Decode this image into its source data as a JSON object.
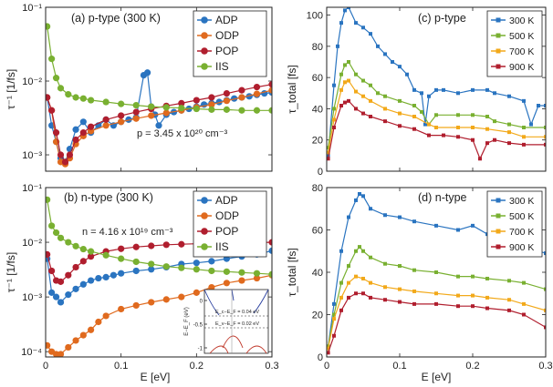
{
  "figure": {
    "xlabel": "E [eV]"
  },
  "chart_data": [
    {
      "type": "scatter",
      "scale_y": "log",
      "title": "(a) p-type (300 K)",
      "xlabel": "",
      "ylabel": "τ⁻¹ [1/fs]",
      "xlim": [
        0,
        0.3
      ],
      "ylim": [
        0.0006,
        0.1
      ],
      "x_ticks": [
        0,
        0.1,
        0.2,
        0.3
      ],
      "x_tick_labels": [
        "",
        "",
        "",
        ""
      ],
      "y_ticks": [
        0.001,
        0.01,
        0.1
      ],
      "y_tick_labels": [
        "10⁻³",
        "10⁻²",
        "10⁻¹"
      ],
      "annotation": "p = 3.45 x 10²⁰ cm⁻³",
      "legend": "top-right",
      "series": [
        {
          "name": "ADP",
          "color": "#2a74c0",
          "x": [
            0.002,
            0.008,
            0.014,
            0.02,
            0.026,
            0.032,
            0.04,
            0.05,
            0.06,
            0.07,
            0.08,
            0.09,
            0.1,
            0.11,
            0.12,
            0.13,
            0.135,
            0.14,
            0.145,
            0.15,
            0.16,
            0.17,
            0.18,
            0.19,
            0.2,
            0.21,
            0.22,
            0.23,
            0.24,
            0.25,
            0.26,
            0.27,
            0.28,
            0.29,
            0.3
          ],
          "y": [
            0.006,
            0.0025,
            0.0015,
            0.0009,
            0.0008,
            0.0012,
            0.0022,
            0.0028,
            0.002,
            0.0025,
            0.003,
            0.0025,
            0.0028,
            0.003,
            0.0032,
            0.012,
            0.013,
            0.0045,
            0.0035,
            0.0025,
            0.0035,
            0.0038,
            0.004,
            0.0042,
            0.0045,
            0.0048,
            0.005,
            0.0052,
            0.0055,
            0.0058,
            0.006,
            0.0062,
            0.0065,
            0.0068,
            0.007
          ]
        },
        {
          "name": "ODP",
          "color": "#e06a1e",
          "x": [
            0.002,
            0.008,
            0.014,
            0.02,
            0.026,
            0.032,
            0.04,
            0.05,
            0.06,
            0.08,
            0.1,
            0.12,
            0.14,
            0.16,
            0.18,
            0.2,
            0.22,
            0.24,
            0.26,
            0.28,
            0.3
          ],
          "y": [
            0.006,
            0.004,
            0.0015,
            0.0008,
            0.00075,
            0.0009,
            0.0014,
            0.0018,
            0.0021,
            0.0025,
            0.0028,
            0.0031,
            0.0034,
            0.0037,
            0.004,
            0.0044,
            0.0048,
            0.0054,
            0.006,
            0.0067,
            0.0075
          ]
        },
        {
          "name": "POP",
          "color": "#b01e2e",
          "x": [
            0.002,
            0.008,
            0.014,
            0.02,
            0.026,
            0.032,
            0.04,
            0.05,
            0.06,
            0.08,
            0.1,
            0.12,
            0.14,
            0.16,
            0.18,
            0.2,
            0.22,
            0.24,
            0.26,
            0.28,
            0.3
          ],
          "y": [
            0.006,
            0.004,
            0.002,
            0.001,
            0.0008,
            0.001,
            0.0016,
            0.002,
            0.0024,
            0.003,
            0.0034,
            0.0038,
            0.0042,
            0.0046,
            0.005,
            0.0055,
            0.006,
            0.0068,
            0.0075,
            0.0083,
            0.009
          ]
        },
        {
          "name": "IIS",
          "color": "#79b031",
          "x": [
            0.002,
            0.008,
            0.014,
            0.02,
            0.03,
            0.04,
            0.05,
            0.06,
            0.08,
            0.1,
            0.12,
            0.14,
            0.16,
            0.18,
            0.2,
            0.22,
            0.24,
            0.26,
            0.28,
            0.3
          ],
          "y": [
            0.055,
            0.02,
            0.011,
            0.008,
            0.0066,
            0.006,
            0.0058,
            0.0055,
            0.0052,
            0.0049,
            0.0047,
            0.0045,
            0.0044,
            0.0043,
            0.0042,
            0.0041,
            0.0041,
            0.004,
            0.004,
            0.004
          ]
        }
      ]
    },
    {
      "type": "scatter",
      "scale_y": "log",
      "title": "(b) n-type (300 K)",
      "xlabel": "E [eV]",
      "ylabel": "τ⁻¹ [1/fs]",
      "xlim": [
        0,
        0.3
      ],
      "ylim": [
        8e-05,
        0.1
      ],
      "x_ticks": [
        0,
        0.1,
        0.2,
        0.3
      ],
      "x_tick_labels": [
        "0",
        "0.1",
        "0.2",
        "0.3"
      ],
      "y_ticks": [
        0.0001,
        0.001,
        0.01,
        0.1
      ],
      "y_tick_labels": [
        "10⁻⁴",
        "10⁻³",
        "10⁻²",
        "10⁻¹"
      ],
      "annotation": "n = 4.16 x 10¹⁹ cm⁻³",
      "legend": "top-right",
      "inset": {
        "ylabel": "E−E_F (eV)",
        "y_tick_labels": [
          "0",
          "-0.5",
          "-1"
        ],
        "labels": [
          "E_c−E_F = 0.04 eV",
          "E_v−E_F = 0.02 eV"
        ]
      },
      "series": [
        {
          "name": "ADP",
          "color": "#2a74c0",
          "x": [
            0.002,
            0.008,
            0.014,
            0.02,
            0.03,
            0.04,
            0.05,
            0.06,
            0.07,
            0.08,
            0.09,
            0.1,
            0.12,
            0.14,
            0.16,
            0.18,
            0.2,
            0.22,
            0.24,
            0.26,
            0.28,
            0.3
          ],
          "y": [
            0.005,
            0.0012,
            0.001,
            0.0008,
            0.0011,
            0.0014,
            0.0017,
            0.002,
            0.0022,
            0.0023,
            0.0025,
            0.0027,
            0.003,
            0.0032,
            0.0035,
            0.004,
            0.0042,
            0.0045,
            0.005,
            0.0055,
            0.006,
            0.007
          ]
        },
        {
          "name": "ODP",
          "color": "#e06a1e",
          "x": [
            0.002,
            0.008,
            0.014,
            0.02,
            0.03,
            0.04,
            0.05,
            0.06,
            0.07,
            0.08,
            0.1,
            0.12,
            0.14,
            0.16,
            0.18,
            0.2,
            0.22,
            0.24,
            0.26,
            0.28,
            0.3
          ],
          "y": [
            0.00013,
            0.0001,
            9e-05,
            9e-05,
            0.00012,
            0.00016,
            0.0002,
            0.00025,
            0.00035,
            0.00045,
            0.0006,
            0.0007,
            0.0008,
            0.0009,
            0.001,
            0.0012,
            0.0015,
            0.0018,
            0.002,
            0.0022,
            0.0025
          ]
        },
        {
          "name": "POP",
          "color": "#b01e2e",
          "x": [
            0.002,
            0.008,
            0.014,
            0.02,
            0.03,
            0.04,
            0.05,
            0.06,
            0.08,
            0.1,
            0.12,
            0.14,
            0.16,
            0.18,
            0.2,
            0.22,
            0.24,
            0.26,
            0.28,
            0.3
          ],
          "y": [
            0.006,
            0.003,
            0.002,
            0.0019,
            0.0025,
            0.0035,
            0.0045,
            0.0055,
            0.0068,
            0.0076,
            0.0082,
            0.0086,
            0.009,
            0.0092,
            0.0094,
            0.0096,
            0.0097,
            0.0098,
            0.0099,
            0.01
          ]
        },
        {
          "name": "IIS",
          "color": "#79b031",
          "x": [
            0.002,
            0.008,
            0.014,
            0.02,
            0.03,
            0.04,
            0.05,
            0.06,
            0.08,
            0.1,
            0.12,
            0.14,
            0.16,
            0.18,
            0.2,
            0.22,
            0.24,
            0.26,
            0.28,
            0.3
          ],
          "y": [
            0.06,
            0.02,
            0.015,
            0.012,
            0.01,
            0.0085,
            0.0075,
            0.0068,
            0.0058,
            0.005,
            0.0044,
            0.004,
            0.0036,
            0.0034,
            0.0032,
            0.003,
            0.0029,
            0.0028,
            0.0027,
            0.0026
          ]
        }
      ]
    },
    {
      "type": "line",
      "title": "(c) p-type",
      "xlabel": "",
      "ylabel": "τ_total [fs]",
      "xlim": [
        0,
        0.3
      ],
      "ylim": [
        0,
        105
      ],
      "x_ticks": [
        0,
        0.1,
        0.2,
        0.3
      ],
      "x_tick_labels": [
        "",
        "",
        "",
        ""
      ],
      "y_ticks": [
        0,
        20,
        40,
        60,
        80,
        100
      ],
      "y_tick_labels": [
        "0",
        "20",
        "40",
        "60",
        "80",
        "100"
      ],
      "legend": "top-right",
      "series": [
        {
          "name": "300 K",
          "color": "#2a74c0",
          "x": [
            0.002,
            0.01,
            0.015,
            0.02,
            0.025,
            0.03,
            0.04,
            0.05,
            0.06,
            0.07,
            0.08,
            0.09,
            0.1,
            0.11,
            0.12,
            0.13,
            0.135,
            0.14,
            0.15,
            0.16,
            0.18,
            0.2,
            0.22,
            0.23,
            0.25,
            0.27,
            0.28,
            0.29,
            0.3
          ],
          "y": [
            10,
            55,
            80,
            95,
            103,
            105,
            95,
            92,
            88,
            80,
            75,
            70,
            67,
            62,
            52,
            50,
            30,
            48,
            52,
            52,
            50,
            52,
            52,
            50,
            48,
            45,
            30,
            42,
            42
          ]
        },
        {
          "name": "500 K",
          "color": "#79b031",
          "x": [
            0.002,
            0.01,
            0.02,
            0.025,
            0.03,
            0.04,
            0.05,
            0.06,
            0.07,
            0.08,
            0.1,
            0.12,
            0.13,
            0.14,
            0.15,
            0.18,
            0.2,
            0.22,
            0.23,
            0.25,
            0.27,
            0.3
          ],
          "y": [
            15,
            40,
            62,
            68,
            70,
            62,
            58,
            55,
            50,
            48,
            45,
            42,
            38,
            30,
            36,
            36,
            36,
            35,
            32,
            30,
            28,
            28
          ]
        },
        {
          "name": "700 K",
          "color": "#f2a91a",
          "x": [
            0.002,
            0.01,
            0.02,
            0.025,
            0.03,
            0.04,
            0.05,
            0.06,
            0.08,
            0.1,
            0.12,
            0.14,
            0.15,
            0.18,
            0.2,
            0.22,
            0.25,
            0.27,
            0.3
          ],
          "y": [
            12,
            33,
            52,
            57,
            58,
            51,
            48,
            45,
            40,
            37,
            35,
            30,
            28,
            28,
            28,
            27,
            25,
            22,
            22
          ]
        },
        {
          "name": "900 K",
          "color": "#b01e2e",
          "x": [
            0.002,
            0.01,
            0.02,
            0.025,
            0.03,
            0.04,
            0.05,
            0.06,
            0.08,
            0.1,
            0.12,
            0.14,
            0.16,
            0.18,
            0.2,
            0.21,
            0.22,
            0.23,
            0.25,
            0.27,
            0.3
          ],
          "y": [
            8,
            28,
            42,
            44,
            45,
            40,
            37,
            35,
            32,
            29,
            27,
            23,
            23,
            22,
            20,
            8,
            18,
            20,
            18,
            17,
            17
          ]
        }
      ]
    },
    {
      "type": "line",
      "title": "(d) n-type",
      "xlabel": "E [eV]",
      "ylabel": "τ_total [fs]",
      "xlim": [
        0,
        0.3
      ],
      "ylim": [
        0,
        80
      ],
      "x_ticks": [
        0,
        0.1,
        0.2,
        0.3
      ],
      "x_tick_labels": [
        "0",
        "0.1",
        "0.2",
        "0.3"
      ],
      "y_ticks": [
        0,
        20,
        40,
        60,
        80
      ],
      "y_tick_labels": [
        "0",
        "20",
        "40",
        "60",
        "80"
      ],
      "legend": "top-right",
      "series": [
        {
          "name": "300 K",
          "color": "#2a74c0",
          "x": [
            0.002,
            0.01,
            0.02,
            0.03,
            0.04,
            0.045,
            0.05,
            0.06,
            0.08,
            0.1,
            0.12,
            0.15,
            0.18,
            0.2,
            0.22,
            0.25,
            0.27,
            0.3
          ],
          "y": [
            5,
            25,
            50,
            66,
            74,
            77,
            76,
            70,
            67,
            66,
            64,
            62,
            60,
            62,
            58,
            55,
            52,
            49
          ]
        },
        {
          "name": "500 K",
          "color": "#79b031",
          "x": [
            0.002,
            0.01,
            0.02,
            0.03,
            0.04,
            0.045,
            0.05,
            0.06,
            0.08,
            0.1,
            0.12,
            0.15,
            0.18,
            0.2,
            0.22,
            0.25,
            0.27,
            0.3
          ],
          "y": [
            5,
            20,
            35,
            43,
            50,
            52,
            50,
            47,
            44,
            43,
            41,
            40,
            38,
            38,
            37,
            36,
            35,
            32
          ]
        },
        {
          "name": "700 K",
          "color": "#f2a91a",
          "x": [
            0.002,
            0.01,
            0.02,
            0.03,
            0.04,
            0.05,
            0.06,
            0.08,
            0.1,
            0.12,
            0.15,
            0.18,
            0.2,
            0.22,
            0.25,
            0.27,
            0.3
          ],
          "y": [
            4,
            18,
            28,
            35,
            38,
            37,
            35,
            33,
            32,
            31,
            30,
            29,
            29,
            28,
            27,
            25,
            22
          ]
        },
        {
          "name": "900 K",
          "color": "#b01e2e",
          "x": [
            0.002,
            0.01,
            0.02,
            0.03,
            0.04,
            0.05,
            0.06,
            0.08,
            0.1,
            0.12,
            0.15,
            0.18,
            0.2,
            0.22,
            0.25,
            0.27,
            0.3
          ],
          "y": [
            2,
            10,
            22,
            28,
            30,
            30,
            28,
            27,
            26,
            25,
            25,
            24,
            24,
            23,
            22,
            20,
            14
          ]
        }
      ]
    }
  ]
}
